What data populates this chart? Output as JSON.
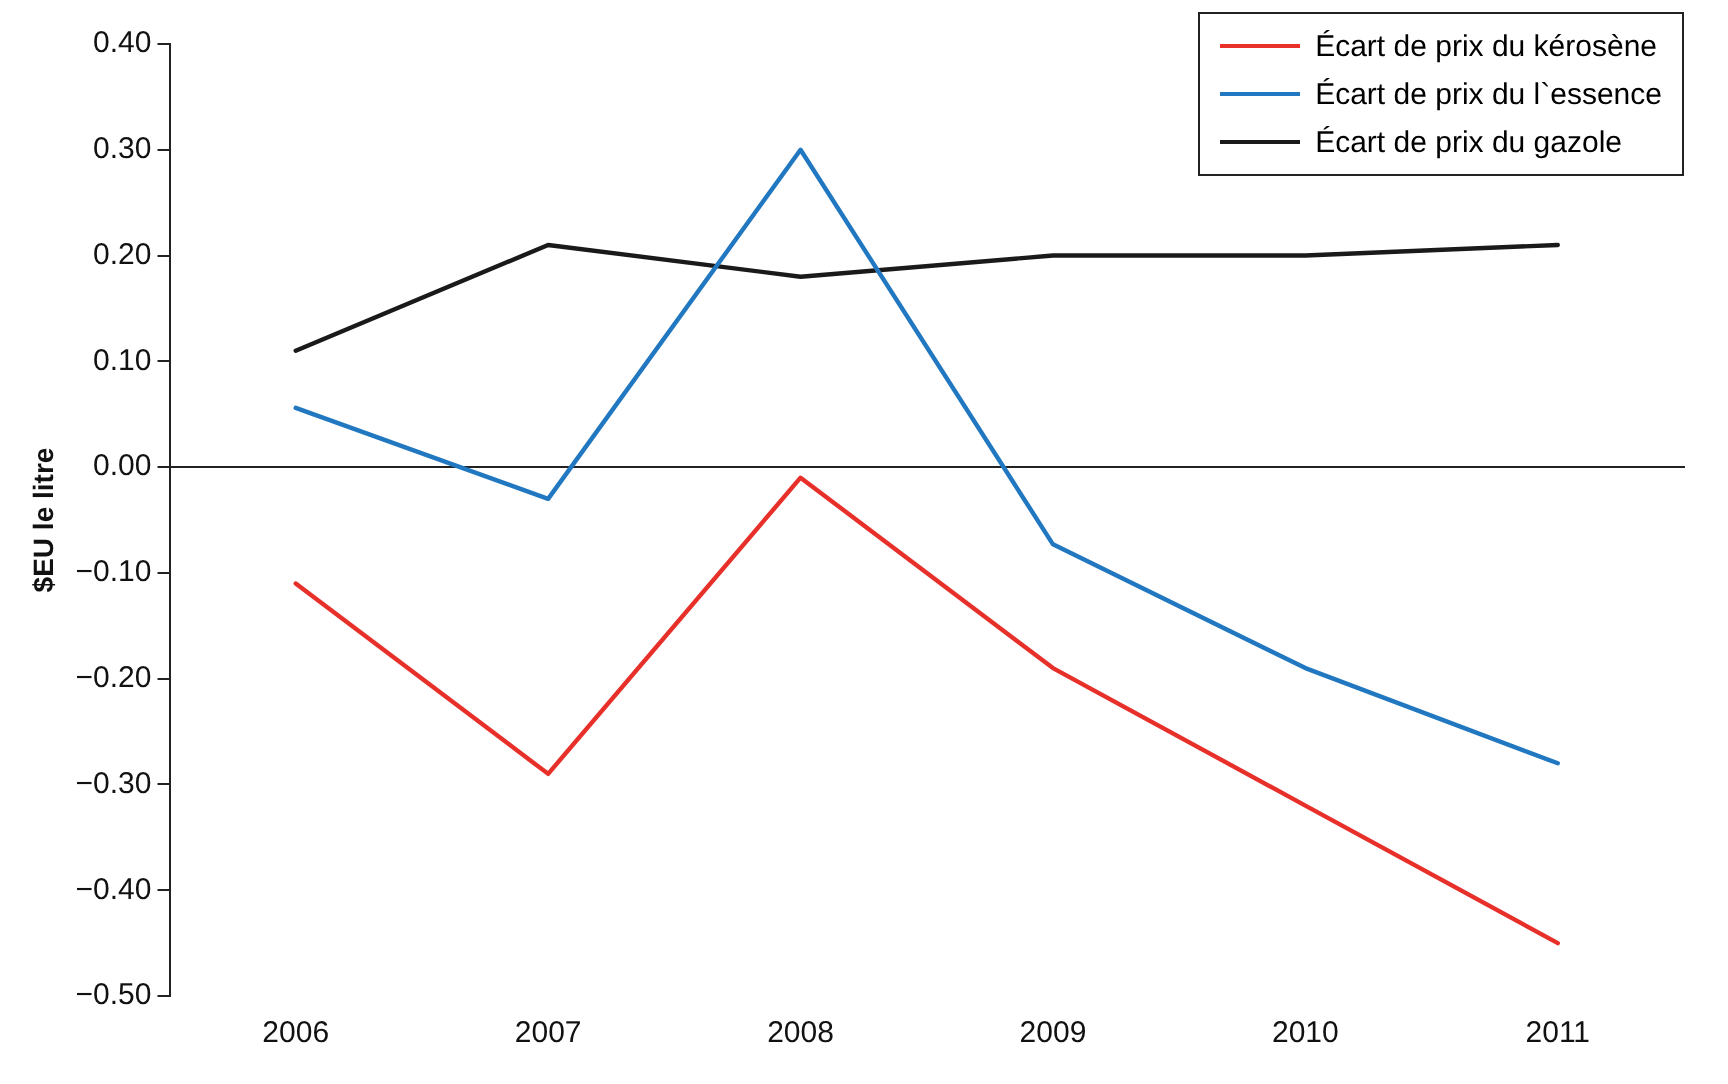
{
  "chart_data": {
    "type": "line",
    "ylabel": "$EU le litre",
    "categories": [
      "2006",
      "2007",
      "2008",
      "2009",
      "2010",
      "2011"
    ],
    "series": [
      {
        "name": "Écart de prix du kérosène",
        "color": "#e8302a",
        "values": [
          -0.11,
          -0.29,
          -0.01,
          -0.19,
          -0.32,
          -0.45
        ]
      },
      {
        "name": "Écart de prix du l`essence",
        "color": "#2278c0",
        "values": [
          0.056,
          -0.03,
          0.3,
          -0.073,
          -0.19,
          -0.28
        ]
      },
      {
        "name": "Écart de prix du gazole",
        "color": "#1a1a1a",
        "values": [
          0.11,
          0.21,
          0.18,
          0.2,
          0.2,
          0.21
        ]
      }
    ],
    "ylim": [
      -0.5,
      0.4
    ],
    "yticks": [
      {
        "value": -0.5,
        "label": "−0.50"
      },
      {
        "value": -0.4,
        "label": "−0.40"
      },
      {
        "value": -0.3,
        "label": "−0.30"
      },
      {
        "value": -0.2,
        "label": "−0.20"
      },
      {
        "value": -0.1,
        "label": "−0.10"
      },
      {
        "value": 0,
        "label": "0.00"
      },
      {
        "value": 0.1,
        "label": "0.10"
      },
      {
        "value": 0.2,
        "label": "0.20"
      },
      {
        "value": 0.3,
        "label": "0.30"
      },
      {
        "value": 0.4,
        "label": "0.40"
      }
    ],
    "legend": "top right",
    "marker": "none",
    "line_style": "solid"
  }
}
